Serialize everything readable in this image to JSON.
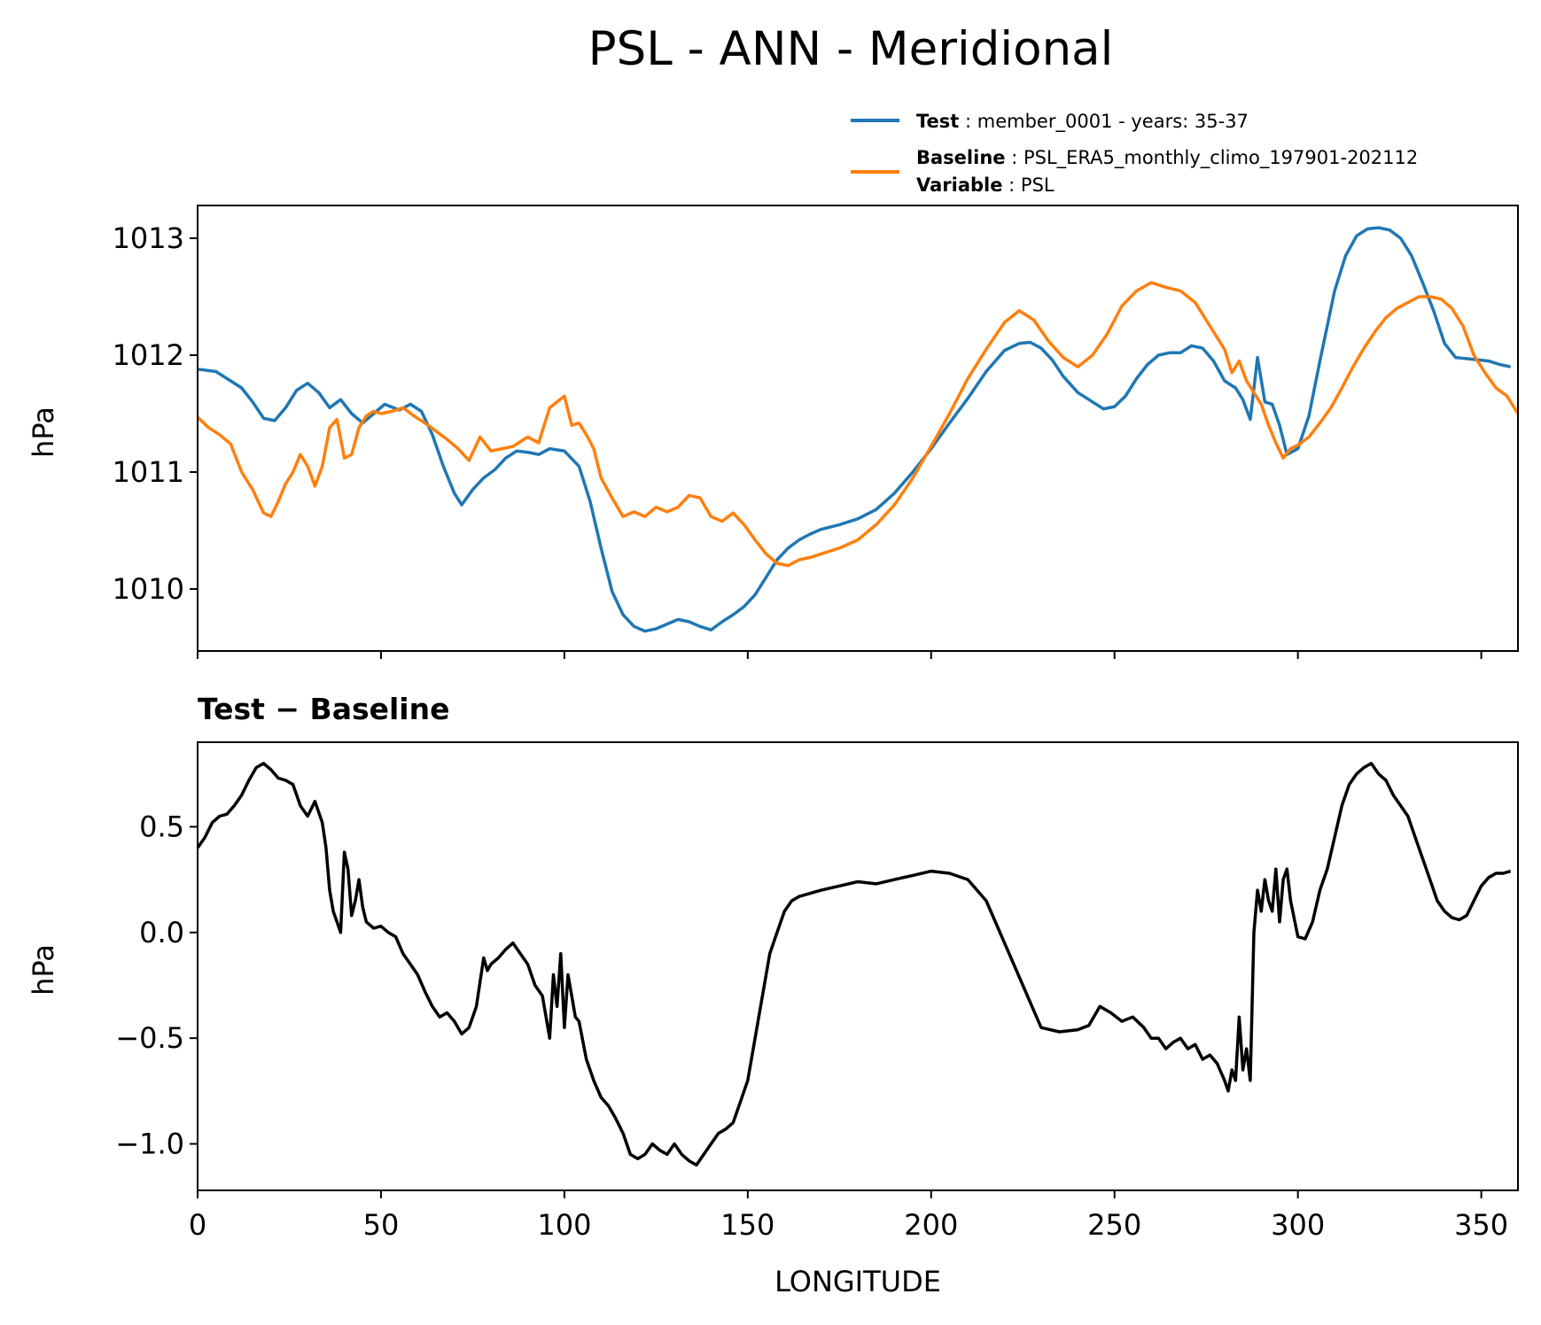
{
  "figure_title": "PSL - ANN - Meridional",
  "legend": {
    "test": {
      "label": "Test",
      "text": "member_0001 - years: 35-37"
    },
    "baseline": {
      "label": "Baseline",
      "text": "PSL_ERA5_monthly_climo_197901-202112"
    },
    "variable": {
      "label": "Variable",
      "text": "PSL"
    }
  },
  "colors": {
    "test": "#1f77b4",
    "baseline": "#ff7f0e",
    "diff": "#000000"
  },
  "chart_data": [
    {
      "type": "line",
      "name": "top",
      "title": "PSL - ANN - Meridional",
      "xlabel": "",
      "ylabel": "hPa",
      "xlim": [
        0,
        360
      ],
      "ylim": [
        1009.47,
        1013.28
      ],
      "yticks": [
        1010,
        1011,
        1012,
        1013
      ],
      "xticks": [
        0,
        50,
        100,
        150,
        200,
        250,
        300,
        350
      ],
      "series": [
        {
          "name": "Test",
          "color": "#1f77b4",
          "x": [
            0,
            5,
            8,
            12,
            15,
            18,
            21,
            24,
            27,
            30,
            33,
            36,
            39,
            42,
            45,
            48,
            51,
            55,
            58,
            61,
            64,
            67,
            70,
            72,
            75,
            78,
            81,
            84,
            87,
            90,
            93,
            96,
            100,
            104,
            107,
            110,
            113,
            116,
            119,
            122,
            125,
            128,
            131,
            134,
            137,
            140,
            143,
            146,
            149,
            152,
            155,
            158,
            161,
            164,
            167,
            170,
            175,
            180,
            185,
            190,
            195,
            200,
            205,
            210,
            215,
            220,
            224,
            227,
            230,
            233,
            236,
            240,
            244,
            247,
            250,
            253,
            256,
            259,
            262,
            265,
            268,
            271,
            274,
            277,
            280,
            283,
            285,
            287,
            289,
            291,
            293,
            295,
            297,
            300,
            303,
            306,
            310,
            313,
            316,
            319,
            322,
            325,
            328,
            331,
            334,
            337,
            340,
            343,
            346,
            349,
            352,
            355,
            358
          ],
          "y": [
            1011.88,
            1011.86,
            1011.8,
            1011.72,
            1011.6,
            1011.46,
            1011.44,
            1011.55,
            1011.7,
            1011.76,
            1011.68,
            1011.55,
            1011.62,
            1011.5,
            1011.42,
            1011.5,
            1011.58,
            1011.53,
            1011.58,
            1011.52,
            1011.32,
            1011.05,
            1010.82,
            1010.72,
            1010.85,
            1010.95,
            1011.02,
            1011.12,
            1011.18,
            1011.17,
            1011.15,
            1011.2,
            1011.18,
            1011.05,
            1010.75,
            1010.35,
            1009.98,
            1009.78,
            1009.68,
            1009.64,
            1009.66,
            1009.7,
            1009.74,
            1009.72,
            1009.68,
            1009.65,
            1009.72,
            1009.78,
            1009.85,
            1009.95,
            1010.1,
            1010.25,
            1010.35,
            1010.42,
            1010.47,
            1010.51,
            1010.55,
            1010.6,
            1010.68,
            1010.82,
            1011.0,
            1011.2,
            1011.42,
            1011.63,
            1011.86,
            1012.04,
            1012.1,
            1012.11,
            1012.06,
            1011.96,
            1011.82,
            1011.68,
            1011.6,
            1011.54,
            1011.56,
            1011.65,
            1011.8,
            1011.92,
            1012.0,
            1012.02,
            1012.02,
            1012.08,
            1012.06,
            1011.95,
            1011.78,
            1011.72,
            1011.62,
            1011.45,
            1011.98,
            1011.6,
            1011.58,
            1011.4,
            1011.15,
            1011.2,
            1011.48,
            1011.95,
            1012.55,
            1012.85,
            1013.02,
            1013.08,
            1013.09,
            1013.07,
            1013.0,
            1012.85,
            1012.62,
            1012.38,
            1012.1,
            1011.98,
            1011.97,
            1011.96,
            1011.95,
            1011.92,
            1011.9
          ]
        },
        {
          "name": "Baseline",
          "color": "#ff7f0e",
          "x": [
            0,
            3,
            6,
            9,
            12,
            15,
            18,
            20,
            22,
            24,
            26,
            28,
            30,
            32,
            34,
            36,
            38,
            40,
            42,
            44,
            46,
            48,
            50,
            53,
            56,
            59,
            62,
            65,
            68,
            71,
            74,
            77,
            80,
            83,
            86,
            90,
            93,
            96,
            100,
            102,
            104,
            106,
            108,
            110,
            113,
            116,
            119,
            122,
            125,
            128,
            131,
            134,
            137,
            140,
            143,
            146,
            149,
            152,
            155,
            158,
            161,
            164,
            167,
            170,
            175,
            180,
            185,
            190,
            195,
            200,
            205,
            210,
            215,
            220,
            224,
            228,
            232,
            236,
            240,
            244,
            248,
            252,
            256,
            260,
            264,
            268,
            272,
            276,
            280,
            282,
            284,
            286,
            288,
            290,
            292,
            294,
            296,
            298,
            300,
            303,
            306,
            309,
            312,
            315,
            318,
            321,
            324,
            327,
            330,
            333,
            336,
            339,
            342,
            345,
            348,
            351,
            354,
            357,
            360
          ],
          "y": [
            1011.47,
            1011.38,
            1011.32,
            1011.24,
            1011.0,
            1010.85,
            1010.65,
            1010.62,
            1010.75,
            1010.9,
            1011.0,
            1011.15,
            1011.05,
            1010.88,
            1011.05,
            1011.38,
            1011.45,
            1011.12,
            1011.15,
            1011.38,
            1011.48,
            1011.52,
            1011.5,
            1011.52,
            1011.55,
            1011.48,
            1011.42,
            1011.35,
            1011.28,
            1011.2,
            1011.1,
            1011.3,
            1011.18,
            1011.2,
            1011.22,
            1011.3,
            1011.25,
            1011.55,
            1011.65,
            1011.4,
            1011.42,
            1011.32,
            1011.2,
            1010.95,
            1010.78,
            1010.62,
            1010.66,
            1010.62,
            1010.7,
            1010.66,
            1010.7,
            1010.8,
            1010.78,
            1010.62,
            1010.58,
            1010.65,
            1010.55,
            1010.42,
            1010.3,
            1010.22,
            1010.2,
            1010.25,
            1010.27,
            1010.3,
            1010.35,
            1010.42,
            1010.55,
            1010.72,
            1010.95,
            1011.22,
            1011.5,
            1011.8,
            1012.05,
            1012.28,
            1012.38,
            1012.3,
            1012.12,
            1011.98,
            1011.9,
            1012.0,
            1012.18,
            1012.42,
            1012.55,
            1012.62,
            1012.58,
            1012.55,
            1012.45,
            1012.25,
            1012.05,
            1011.85,
            1011.95,
            1011.78,
            1011.68,
            1011.58,
            1011.4,
            1011.25,
            1011.12,
            1011.2,
            1011.23,
            1011.3,
            1011.42,
            1011.55,
            1011.72,
            1011.9,
            1012.06,
            1012.2,
            1012.32,
            1012.4,
            1012.45,
            1012.5,
            1012.5,
            1012.48,
            1012.4,
            1012.25,
            1012.0,
            1011.85,
            1011.72,
            1011.65,
            1011.5
          ]
        }
      ]
    },
    {
      "type": "line",
      "name": "bottom",
      "title": "Test − Baseline",
      "xlabel": "LONGITUDE",
      "ylabel": "hPa",
      "xlim": [
        0,
        360
      ],
      "ylim": [
        -1.22,
        0.9
      ],
      "yticks": [
        0.5,
        0.0,
        -0.5,
        -1.0
      ],
      "ytick_labels": [
        "0.5",
        "0.0",
        "−0.5",
        "−1.0"
      ],
      "xticks": [
        0,
        50,
        100,
        150,
        200,
        250,
        300,
        350
      ],
      "xtick_labels": [
        "0",
        "50",
        "100",
        "150",
        "200",
        "250",
        "300",
        "350"
      ],
      "series": [
        {
          "name": "Test - Baseline",
          "color": "#000000",
          "x": [
            0,
            2,
            4,
            6,
            8,
            10,
            12,
            14,
            16,
            18,
            20,
            22,
            24,
            26,
            28,
            30,
            32,
            34,
            35,
            36,
            37,
            38,
            39,
            40,
            41,
            42,
            43,
            44,
            45,
            46,
            48,
            50,
            52,
            54,
            56,
            58,
            60,
            62,
            64,
            66,
            68,
            70,
            72,
            74,
            76,
            78,
            79,
            80,
            82,
            84,
            86,
            88,
            90,
            92,
            94,
            96,
            97,
            98,
            99,
            100,
            101,
            102,
            103,
            104,
            106,
            108,
            110,
            112,
            114,
            116,
            118,
            120,
            122,
            124,
            126,
            128,
            130,
            132,
            134,
            136,
            138,
            140,
            142,
            144,
            146,
            148,
            150,
            152,
            154,
            156,
            158,
            160,
            162,
            164,
            166,
            170,
            175,
            180,
            185,
            190,
            195,
            200,
            205,
            210,
            215,
            220,
            225,
            230,
            235,
            240,
            243,
            246,
            249,
            252,
            255,
            258,
            260,
            262,
            264,
            266,
            268,
            270,
            272,
            274,
            276,
            278,
            280,
            281,
            282,
            283,
            284,
            285,
            286,
            287,
            288,
            289,
            290,
            291,
            292,
            293,
            294,
            295,
            296,
            297,
            298,
            300,
            302,
            304,
            306,
            308,
            310,
            312,
            314,
            316,
            318,
            320,
            322,
            324,
            326,
            328,
            330,
            332,
            334,
            336,
            338,
            340,
            342,
            344,
            346,
            348,
            350,
            352,
            354,
            356,
            358
          ],
          "y": [
            0.4,
            0.45,
            0.52,
            0.55,
            0.56,
            0.6,
            0.65,
            0.72,
            0.78,
            0.8,
            0.77,
            0.73,
            0.72,
            0.7,
            0.6,
            0.55,
            0.62,
            0.52,
            0.4,
            0.2,
            0.1,
            0.05,
            0.0,
            0.38,
            0.3,
            0.08,
            0.15,
            0.25,
            0.12,
            0.05,
            0.02,
            0.03,
            0.0,
            -0.02,
            -0.1,
            -0.15,
            -0.2,
            -0.28,
            -0.35,
            -0.4,
            -0.38,
            -0.42,
            -0.48,
            -0.45,
            -0.35,
            -0.12,
            -0.18,
            -0.15,
            -0.12,
            -0.08,
            -0.05,
            -0.1,
            -0.15,
            -0.25,
            -0.3,
            -0.5,
            -0.2,
            -0.35,
            -0.1,
            -0.45,
            -0.2,
            -0.3,
            -0.4,
            -0.42,
            -0.6,
            -0.7,
            -0.78,
            -0.82,
            -0.88,
            -0.95,
            -1.05,
            -1.07,
            -1.05,
            -1.0,
            -1.03,
            -1.05,
            -1.0,
            -1.05,
            -1.08,
            -1.1,
            -1.05,
            -1.0,
            -0.95,
            -0.93,
            -0.9,
            -0.8,
            -0.7,
            -0.5,
            -0.3,
            -0.1,
            0.0,
            0.1,
            0.15,
            0.17,
            0.18,
            0.2,
            0.22,
            0.24,
            0.23,
            0.25,
            0.27,
            0.29,
            0.28,
            0.25,
            0.15,
            -0.05,
            -0.25,
            -0.45,
            -0.47,
            -0.46,
            -0.44,
            -0.35,
            -0.38,
            -0.42,
            -0.4,
            -0.45,
            -0.5,
            -0.5,
            -0.55,
            -0.52,
            -0.5,
            -0.55,
            -0.53,
            -0.6,
            -0.58,
            -0.62,
            -0.7,
            -0.75,
            -0.65,
            -0.7,
            -0.4,
            -0.65,
            -0.55,
            -0.7,
            0.0,
            0.2,
            0.1,
            0.25,
            0.15,
            0.1,
            0.3,
            0.05,
            0.25,
            0.3,
            0.15,
            -0.02,
            -0.03,
            0.05,
            0.2,
            0.3,
            0.45,
            0.6,
            0.7,
            0.75,
            0.78,
            0.8,
            0.75,
            0.72,
            0.65,
            0.6,
            0.55,
            0.45,
            0.35,
            0.25,
            0.15,
            0.1,
            0.07,
            0.06,
            0.08,
            0.15,
            0.22,
            0.26,
            0.28,
            0.28,
            0.29
          ]
        }
      ]
    }
  ]
}
